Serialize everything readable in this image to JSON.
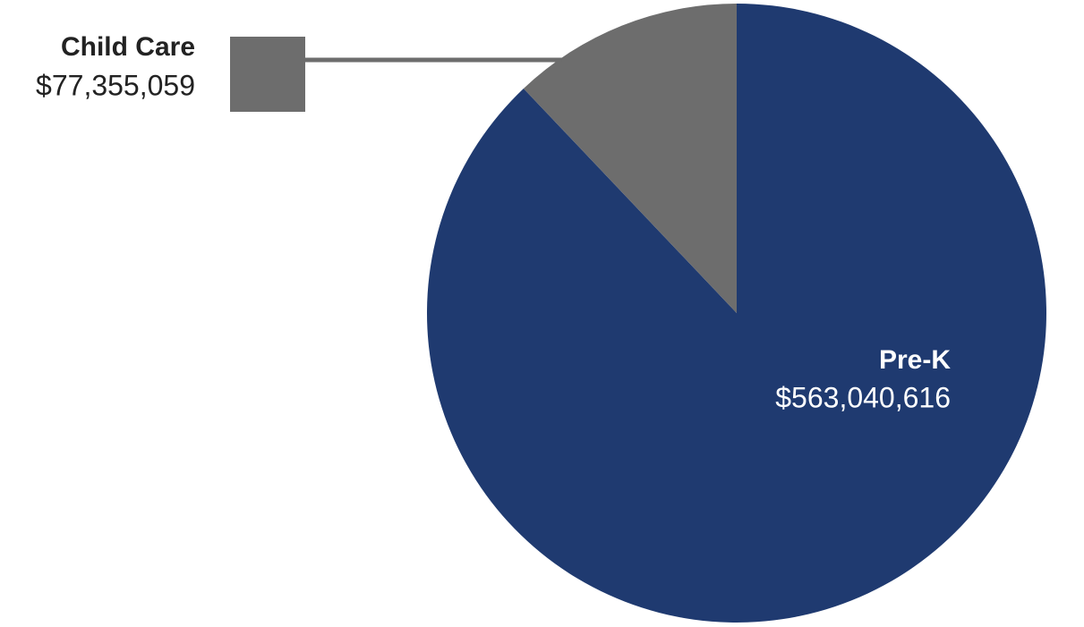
{
  "chart_data": {
    "type": "pie",
    "categories": [
      "Pre-K",
      "Child Care"
    ],
    "values": [
      563040616,
      77355059
    ],
    "value_labels": [
      "$563,040,616",
      "$77,355,059"
    ],
    "colors": [
      "#1f3a70",
      "#6d6d6d"
    ]
  }
}
